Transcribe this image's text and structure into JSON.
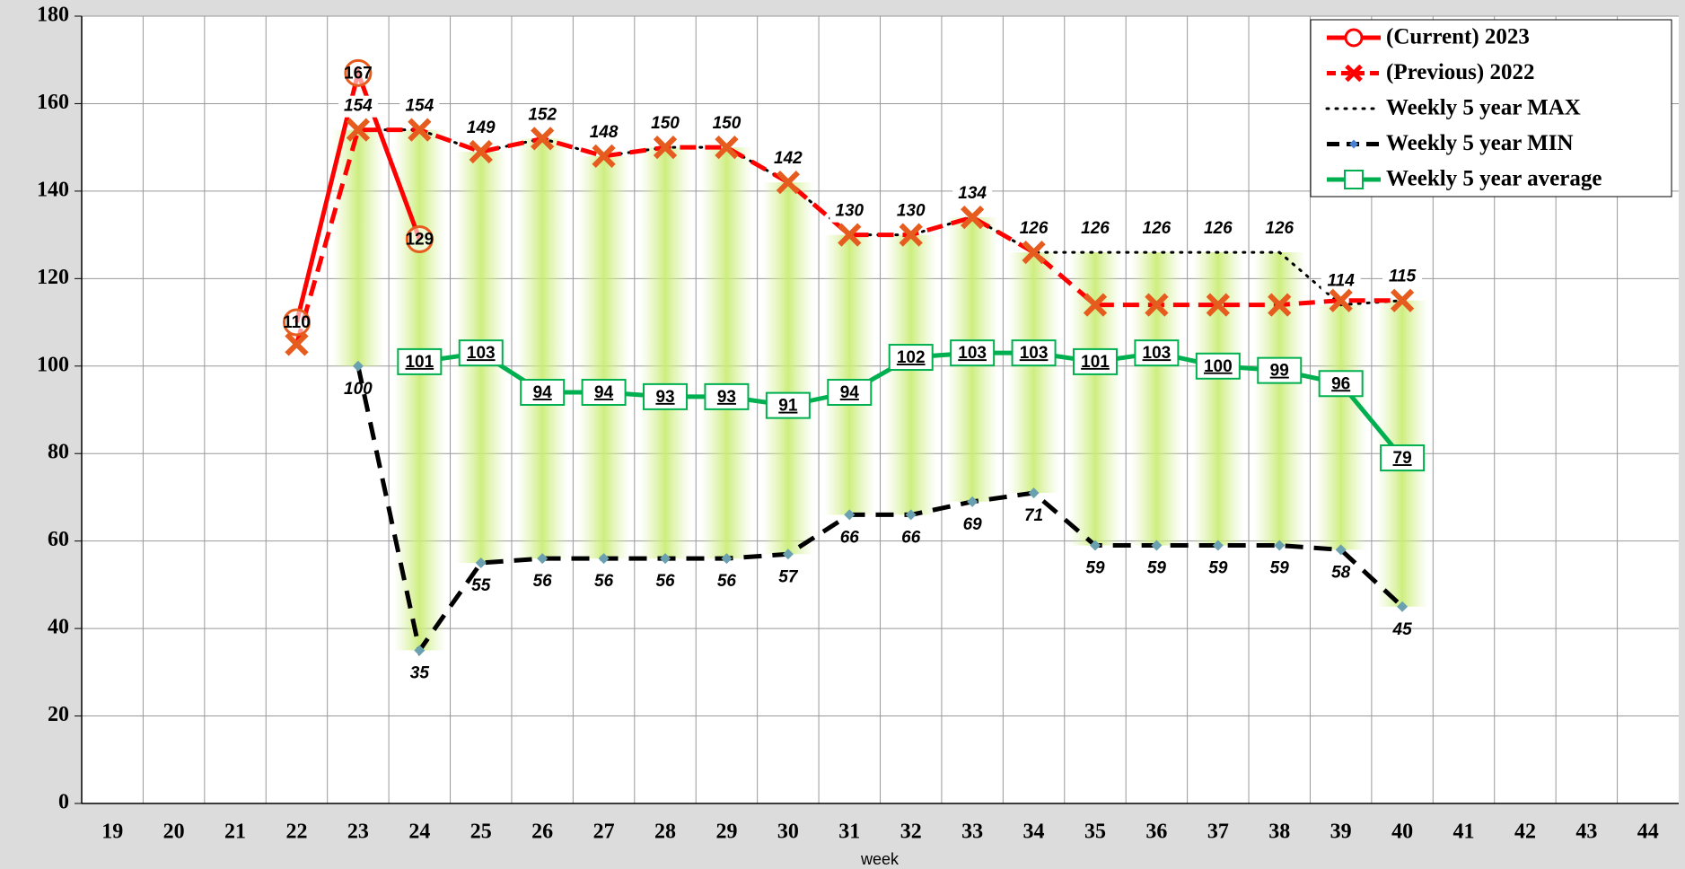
{
  "chart_data": {
    "type": "line",
    "x_label": "week",
    "categories": [
      "19",
      "20",
      "21",
      "22",
      "23",
      "24",
      "25",
      "26",
      "27",
      "28",
      "29",
      "30",
      "31",
      "32",
      "33",
      "34",
      "35",
      "36",
      "37",
      "38",
      "39",
      "40",
      "41",
      "42",
      "43",
      "44"
    ],
    "ylim": [
      0,
      180
    ],
    "yticks": [
      0,
      20,
      40,
      60,
      80,
      100,
      120,
      140,
      160,
      180
    ],
    "grid": true,
    "legend": "upper right",
    "series": [
      {
        "name": "(Current) 2023",
        "color": "#ff0000",
        "values": [
          null,
          null,
          null,
          110,
          167,
          129,
          null,
          null,
          null,
          null,
          null,
          null,
          null,
          null,
          null,
          null,
          null,
          null,
          null,
          null,
          null,
          null,
          null,
          null,
          null,
          null
        ]
      },
      {
        "name": "(Previous) 2022",
        "color": "#ff0000",
        "values": [
          null,
          null,
          null,
          105,
          154,
          154,
          149,
          152,
          148,
          150,
          150,
          142,
          130,
          130,
          134,
          126,
          114,
          114,
          114,
          114,
          115,
          115,
          null,
          null,
          null,
          null
        ]
      },
      {
        "name": "Weekly 5 year MAX",
        "color": "#000000",
        "values": [
          null,
          null,
          null,
          null,
          154,
          154,
          149,
          152,
          148,
          150,
          150,
          142,
          130,
          130,
          134,
          126,
          126,
          126,
          126,
          126,
          114,
          115,
          null,
          null,
          null,
          null
        ]
      },
      {
        "name": "Weekly 5 year MIN",
        "color": "#000000",
        "values": [
          null,
          null,
          null,
          null,
          100,
          35,
          55,
          56,
          56,
          56,
          56,
          57,
          66,
          66,
          69,
          71,
          59,
          59,
          59,
          59,
          58,
          45,
          null,
          null,
          null,
          null
        ]
      },
      {
        "name": "Weekly 5 year average",
        "color": "#00b050",
        "values": [
          null,
          null,
          null,
          null,
          null,
          101,
          103,
          94,
          94,
          93,
          93,
          91,
          94,
          102,
          103,
          103,
          101,
          103,
          100,
          99,
          96,
          79,
          null,
          null,
          null,
          null
        ]
      }
    ]
  }
}
